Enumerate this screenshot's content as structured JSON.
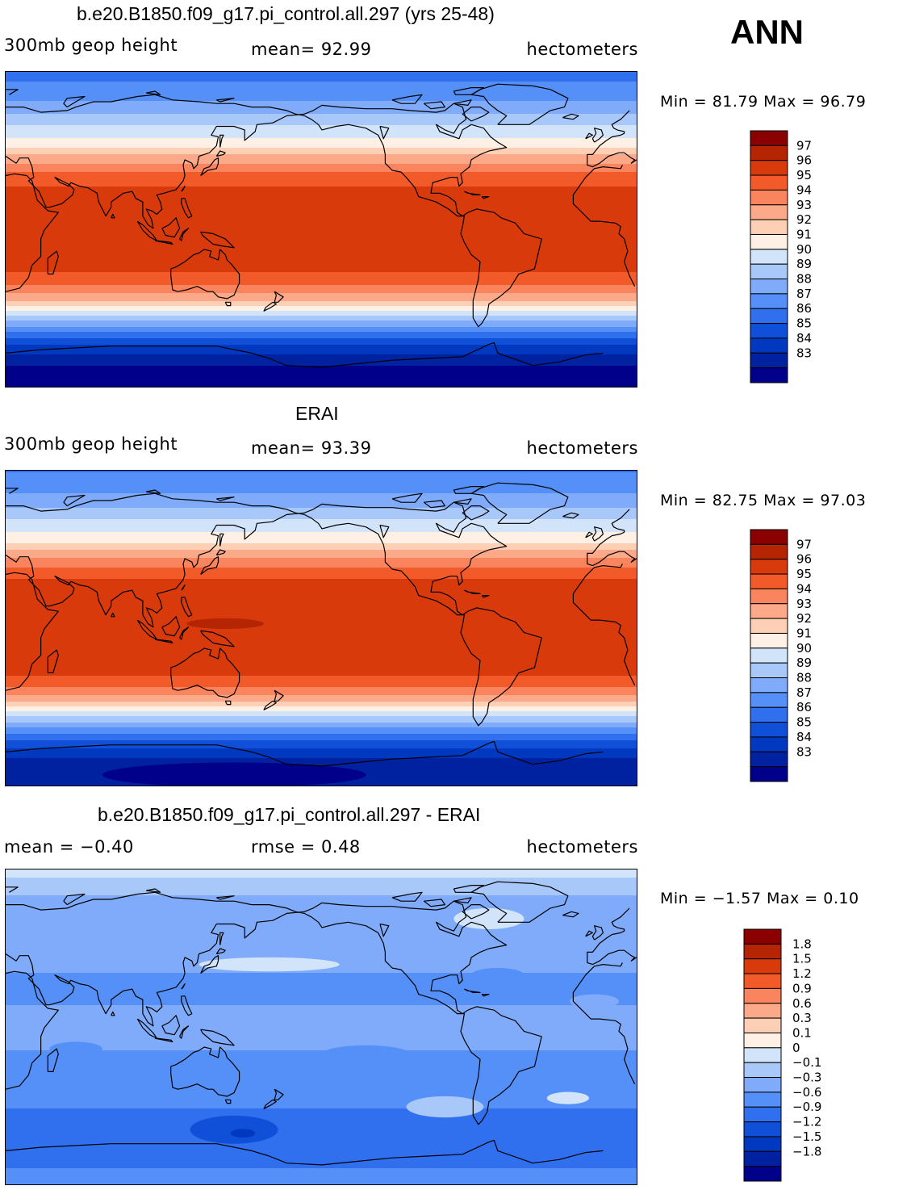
{
  "season": "ANN",
  "panels": [
    {
      "title": "b.e20.B1850.f09_g17.pi_control.all.297 (yrs 25-48)",
      "variable": "300mb geop height",
      "stat": "mean=   92.99",
      "units": "hectometers",
      "minmax": "Min =   81.79 Max =   96.79"
    },
    {
      "title": "ERAI",
      "variable": "300mb geop height",
      "stat": "mean=   93.39",
      "units": "hectometers",
      "minmax": "Min =   82.75 Max =   97.03"
    },
    {
      "title": "b.e20.B1850.f09_g17.pi_control.all.297 - ERAI",
      "variable": "mean =   −0.40",
      "stat": "rmse =     0.48",
      "units": "hectometers",
      "minmax": "Min =   −1.57 Max =     0.10"
    }
  ],
  "chart_data": [
    {
      "type": "heatmap",
      "title": "b.e20.B1850.f09_g17.pi_control.all.297 (yrs 25-48)",
      "variable": "300mb geop height",
      "units": "hectometers",
      "mean": 92.99,
      "min": 81.79,
      "max": 96.79,
      "contour_levels": [
        83,
        84,
        85,
        86,
        87,
        88,
        89,
        90,
        91,
        92,
        93,
        94,
        95,
        96,
        97
      ],
      "colors": [
        "#00008a",
        "#0022a0",
        "#0038c0",
        "#1050d8",
        "#3070ee",
        "#5590f8",
        "#7fabfa",
        "#a9c8fa",
        "#d2e4fa",
        "#fff0e6",
        "#fdd0b6",
        "#fca98a",
        "#f9845d",
        "#f25a2a",
        "#d93a0c",
        "#b52504",
        "#8b0000"
      ],
      "latitude_profile": [
        {
          "lat": 90,
          "value": 86.5
        },
        {
          "lat": 75,
          "value": 87.8
        },
        {
          "lat": 62,
          "value": 89.6
        },
        {
          "lat": 50,
          "value": 91.4
        },
        {
          "lat": 40,
          "value": 93.6
        },
        {
          "lat": 30,
          "value": 95.6
        },
        {
          "lat": 20,
          "value": 96.4
        },
        {
          "lat": 0,
          "value": 96.6
        },
        {
          "lat": -20,
          "value": 96.4
        },
        {
          "lat": -30,
          "value": 95.4
        },
        {
          "lat": -40,
          "value": 93.0
        },
        {
          "lat": -50,
          "value": 89.6
        },
        {
          "lat": -58,
          "value": 87.0
        },
        {
          "lat": -65,
          "value": 85.0
        },
        {
          "lat": -75,
          "value": 83.2
        },
        {
          "lat": -90,
          "value": 82.0
        }
      ]
    },
    {
      "type": "heatmap",
      "title": "ERAI",
      "variable": "300mb geop height",
      "units": "hectometers",
      "mean": 93.39,
      "min": 82.75,
      "max": 97.03,
      "contour_levels": [
        83,
        84,
        85,
        86,
        87,
        88,
        89,
        90,
        91,
        92,
        93,
        94,
        95,
        96,
        97
      ],
      "colors": [
        "#00008a",
        "#0022a0",
        "#0038c0",
        "#1050d8",
        "#3070ee",
        "#5590f8",
        "#7fabfa",
        "#a9c8fa",
        "#d2e4fa",
        "#fff0e6",
        "#fdd0b6",
        "#fca98a",
        "#f9845d",
        "#f25a2a",
        "#d93a0c",
        "#b52504",
        "#8b0000"
      ],
      "latitude_profile": [
        {
          "lat": 90,
          "value": 86.9
        },
        {
          "lat": 75,
          "value": 88.2
        },
        {
          "lat": 62,
          "value": 90.0
        },
        {
          "lat": 50,
          "value": 91.8
        },
        {
          "lat": 40,
          "value": 94.0
        },
        {
          "lat": 30,
          "value": 95.9
        },
        {
          "lat": 20,
          "value": 96.6
        },
        {
          "lat": 0,
          "value": 96.8
        },
        {
          "lat": -20,
          "value": 96.6
        },
        {
          "lat": -30,
          "value": 95.7
        },
        {
          "lat": -40,
          "value": 93.4
        },
        {
          "lat": -50,
          "value": 90.0
        },
        {
          "lat": -58,
          "value": 87.4
        },
        {
          "lat": -65,
          "value": 85.5
        },
        {
          "lat": -75,
          "value": 83.8
        },
        {
          "lat": -90,
          "value": 83.0
        }
      ]
    },
    {
      "type": "heatmap",
      "title": "b.e20.B1850.f09_g17.pi_control.all.297 - ERAI",
      "units": "hectometers",
      "mean": -0.4,
      "rmse": 0.48,
      "min": -1.57,
      "max": 0.1,
      "contour_levels": [
        -1.8,
        -1.5,
        -1.2,
        -0.9,
        -0.6,
        -0.3,
        -0.1,
        0,
        0.1,
        0.3,
        0.6,
        0.9,
        1.2,
        1.5,
        1.8
      ],
      "colors": [
        "#00008a",
        "#0022a0",
        "#0038c0",
        "#1050d8",
        "#3070ee",
        "#5590f8",
        "#7fabfa",
        "#a9c8fa",
        "#d2e4fa",
        "#fff0e6",
        "#fdd0b6",
        "#fca98a",
        "#f9845d",
        "#f25a2a",
        "#d93a0c",
        "#b52504",
        "#8b0000"
      ],
      "latitude_profile": [
        {
          "lat": 90,
          "value": 0.05
        },
        {
          "lat": 80,
          "value": -0.05
        },
        {
          "lat": 65,
          "value": -0.2
        },
        {
          "lat": 45,
          "value": -0.2
        },
        {
          "lat": 25,
          "value": -0.35
        },
        {
          "lat": 0,
          "value": -0.25
        },
        {
          "lat": -25,
          "value": -0.35
        },
        {
          "lat": -40,
          "value": -0.5
        },
        {
          "lat": -55,
          "value": -0.75
        },
        {
          "lat": -65,
          "value": -0.8
        },
        {
          "lat": -80,
          "value": -0.6
        },
        {
          "lat": -90,
          "value": -0.45
        }
      ]
    }
  ]
}
